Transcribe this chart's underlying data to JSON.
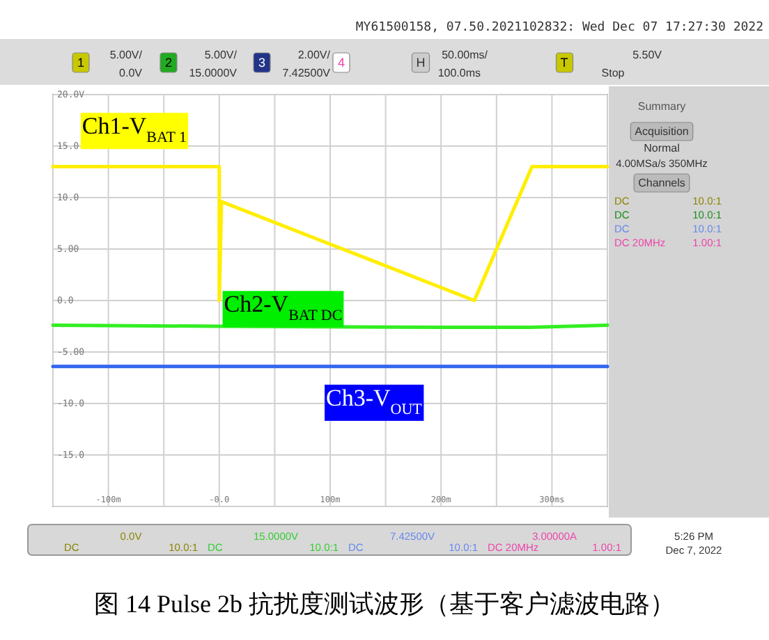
{
  "chart_data": {
    "type": "line",
    "title": "图 14 Pulse 2b 抗扰度测试波形（基于客户滤波电路）",
    "xlim": [
      -150,
      350
    ],
    "ylim": [
      -20,
      20
    ],
    "xticks": [
      {
        "value": -150,
        "label": null
      },
      {
        "value": -100,
        "label": "-100m"
      },
      {
        "value": -50,
        "label": null
      },
      {
        "value": 0,
        "label": "-0.0"
      },
      {
        "value": 50,
        "label": null
      },
      {
        "value": 100,
        "label": "100m"
      },
      {
        "value": 150,
        "label": null
      },
      {
        "value": 200,
        "label": "200m"
      },
      {
        "value": 250,
        "label": null
      },
      {
        "value": 300,
        "label": "300ms"
      },
      {
        "value": 350,
        "label": null
      }
    ],
    "yticks": [
      {
        "value": 20,
        "label": "20.0V"
      },
      {
        "value": 15,
        "label": "15.0"
      },
      {
        "value": 10,
        "label": "10.0"
      },
      {
        "value": 5,
        "label": "5.00"
      },
      {
        "value": 0,
        "label": "0.0"
      },
      {
        "value": -5,
        "label": "-5.00"
      },
      {
        "value": -10,
        "label": "-10.0"
      },
      {
        "value": -15,
        "label": "-15.0"
      },
      {
        "value": -20,
        "label": null
      }
    ],
    "grid": true,
    "series": [
      {
        "name": "Ch1-V$_{BAT 1}$",
        "color": "#ffee00",
        "x": [
          -150,
          0,
          0,
          2,
          230,
          282,
          350
        ],
        "values": [
          13,
          13,
          0,
          9.6,
          0,
          13,
          13
        ]
      },
      {
        "name": "Ch2-V$_{BAT DC}$",
        "color": "#33ee22",
        "x": [
          -150,
          0,
          200,
          280,
          350
        ],
        "values": [
          -2.4,
          -2.5,
          -2.6,
          -2.6,
          -2.4
        ]
      },
      {
        "name": "Ch3-V$_{OUT}$",
        "color": "#3366ee",
        "x": [
          -150,
          350
        ],
        "values": [
          -6.4,
          -6.4
        ]
      }
    ],
    "annotations": [
      "MY61500158, 07.50.2021102832: Wed Dec 07 17:27:30 2022",
      "1",
      "5.00V/",
      "0.0V",
      "2",
      "5.00V/",
      "15.0000V",
      "3",
      "2.00V/",
      "7.42500V",
      "4",
      "H",
      "50.00ms/",
      "100.0ms",
      "T",
      "5.50V",
      "Stop",
      "Summary",
      "Acquisition",
      "Normal",
      "4.00MSa/s  350MHz",
      "Channels",
      "DC",
      "10.0:1",
      "DC",
      "10.0:1",
      "DC",
      "10.0:1",
      "DC  20MHz",
      "1.00:1",
      "0.0V",
      "DC",
      "10.0:1",
      "15.0000V",
      "DC",
      "10.0:1",
      "7.42500V",
      "DC",
      "10.0:1",
      "3.00000A",
      "DC 20MHz",
      "1.00:1",
      "5:26 PM",
      "Dec 7, 2022"
    ]
  }
}
